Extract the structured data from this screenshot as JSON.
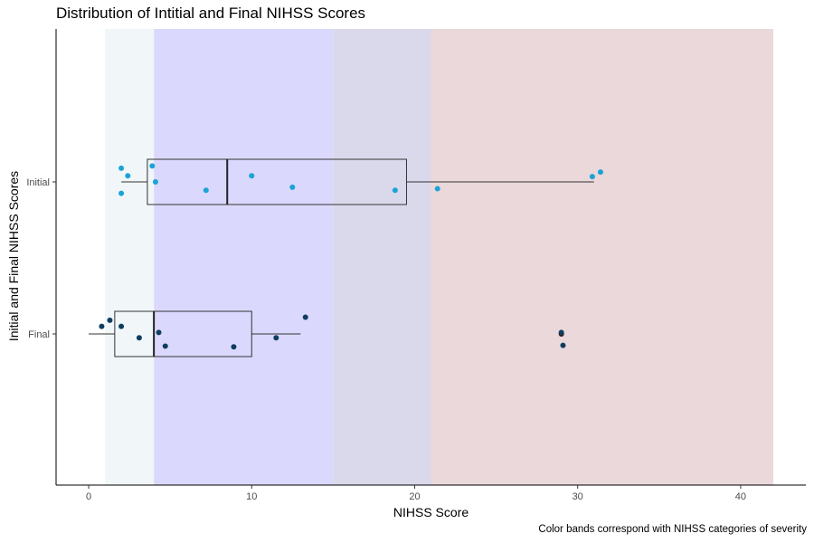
{
  "chart_data": {
    "type": "boxplot",
    "title": "Distribution of Intitial and Final NIHSS Scores",
    "xlabel": "NIHSS Score",
    "ylabel": "Initial and Final NIHSS Scores",
    "caption": "Color bands correspond with NIHSS categories of severity",
    "xlim": [
      -2,
      44
    ],
    "x_ticks": [
      0,
      10,
      20,
      30,
      40
    ],
    "x_tick_labels": [
      "0",
      "10",
      "20",
      "30",
      "40"
    ],
    "categories": [
      "Initial",
      "Final"
    ],
    "grid": false,
    "bands": [
      {
        "from": 1,
        "to": 4,
        "color": "#f1f7f9"
      },
      {
        "from": 4,
        "to": 15,
        "color": "#dbd8fd"
      },
      {
        "from": 15,
        "to": 21,
        "color": "#dad9ec"
      },
      {
        "from": 21,
        "to": 42,
        "color": "#ead8da"
      }
    ],
    "boxes": [
      {
        "category": "Initial",
        "whisker_low": 2,
        "q1": 3.6,
        "median": 8.5,
        "q3": 19.5,
        "whisker_high": 31
      },
      {
        "category": "Final",
        "whisker_low": 0,
        "q1": 1.6,
        "median": 4,
        "q3": 10,
        "whisker_high": 13
      }
    ],
    "series": [
      {
        "category": "Initial",
        "color": "#1ba3d6",
        "points": [
          {
            "x": 2,
            "jitter": 0.18
          },
          {
            "x": 2.4,
            "jitter": 0.08
          },
          {
            "x": 2,
            "jitter": -0.15
          },
          {
            "x": 3.9,
            "jitter": 0.21
          },
          {
            "x": 4.1,
            "jitter": 0.0
          },
          {
            "x": 7.2,
            "jitter": -0.11
          },
          {
            "x": 10,
            "jitter": 0.08
          },
          {
            "x": 12.5,
            "jitter": -0.07
          },
          {
            "x": 18.8,
            "jitter": -0.11
          },
          {
            "x": 21.4,
            "jitter": -0.09
          },
          {
            "x": 30.9,
            "jitter": 0.07
          },
          {
            "x": 31.4,
            "jitter": 0.13
          }
        ]
      },
      {
        "category": "Final",
        "color": "#0e3d60",
        "points": [
          {
            "x": 0.8,
            "jitter": 0.1
          },
          {
            "x": 1.3,
            "jitter": 0.18
          },
          {
            "x": 2,
            "jitter": 0.1
          },
          {
            "x": 3.1,
            "jitter": -0.05
          },
          {
            "x": 4.3,
            "jitter": 0.02
          },
          {
            "x": 4.7,
            "jitter": -0.16
          },
          {
            "x": 8.9,
            "jitter": -0.17
          },
          {
            "x": 11.5,
            "jitter": -0.05
          },
          {
            "x": 13.3,
            "jitter": 0.22
          },
          {
            "x": 29,
            "jitter": 0.02
          },
          {
            "x": 29.1,
            "jitter": -0.15
          }
        ]
      }
    ],
    "outlier_markers": [
      {
        "category": "Final",
        "x": 29,
        "color": "#3a1a1a"
      }
    ]
  }
}
